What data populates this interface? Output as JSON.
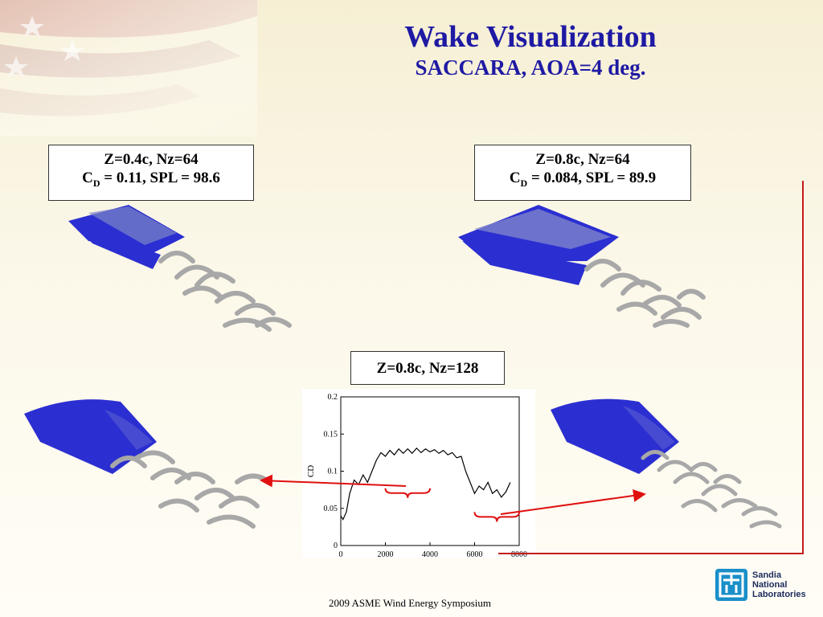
{
  "slide": {
    "title": "Wake Visualization",
    "subtitle": "SACCARA, AOA=4 deg.",
    "footer": "2009 ASME Wind Energy Symposium",
    "logo": {
      "line1": "Sandia",
      "line2": "National",
      "line3": "Laboratories",
      "icon": "sandia-thunderbird-icon"
    }
  },
  "cases": {
    "left": {
      "line1": "Z=0.4c, Nz=64",
      "cd_symbol": "C",
      "cd_sub": "D",
      "line2_rest": " = 0.11, SPL = 98.6"
    },
    "right": {
      "line1": "Z=0.8c, Nz=64",
      "cd_symbol": "C",
      "cd_sub": "D",
      "line2_rest": " = 0.084, SPL = 89.9"
    },
    "center": {
      "line1": "Z=0.8c, Nz=128"
    }
  },
  "colors": {
    "title": "#1f1aa3",
    "airfoil": "#2b2fd1",
    "arrow": "#e01010",
    "rule": "#c41a1a"
  },
  "chart_data": {
    "type": "line",
    "ylabel": "C_D",
    "xlim": [
      0,
      8000
    ],
    "ylim": [
      0,
      0.2
    ],
    "xticks": [
      "0",
      "2000",
      "4000",
      "6000",
      "8000"
    ],
    "yticks": [
      "0",
      "0.05",
      "0.1",
      "0.15",
      "0.2"
    ],
    "series": [
      {
        "x": [
          0,
          100,
          250,
          400,
          600,
          800,
          1000,
          1200,
          1400,
          1600,
          1800,
          2000,
          2200,
          2400,
          2600,
          2800,
          3000,
          3200,
          3400,
          3600,
          3800,
          4000,
          4200,
          4400,
          4600,
          4800,
          5000,
          5200,
          5400,
          5600,
          5800,
          6000,
          6200,
          6400,
          6600,
          6800,
          7000,
          7200,
          7400,
          7600
        ],
        "y": [
          0.04,
          0.035,
          0.045,
          0.07,
          0.088,
          0.082,
          0.095,
          0.085,
          0.1,
          0.115,
          0.125,
          0.12,
          0.128,
          0.122,
          0.13,
          0.124,
          0.13,
          0.124,
          0.131,
          0.125,
          0.13,
          0.126,
          0.129,
          0.124,
          0.128,
          0.122,
          0.125,
          0.118,
          0.12,
          0.1,
          0.085,
          0.07,
          0.08,
          0.075,
          0.085,
          0.07,
          0.075,
          0.065,
          0.072,
          0.085
        ]
      }
    ],
    "annotations": [
      "brace-mid",
      "brace-late"
    ]
  }
}
